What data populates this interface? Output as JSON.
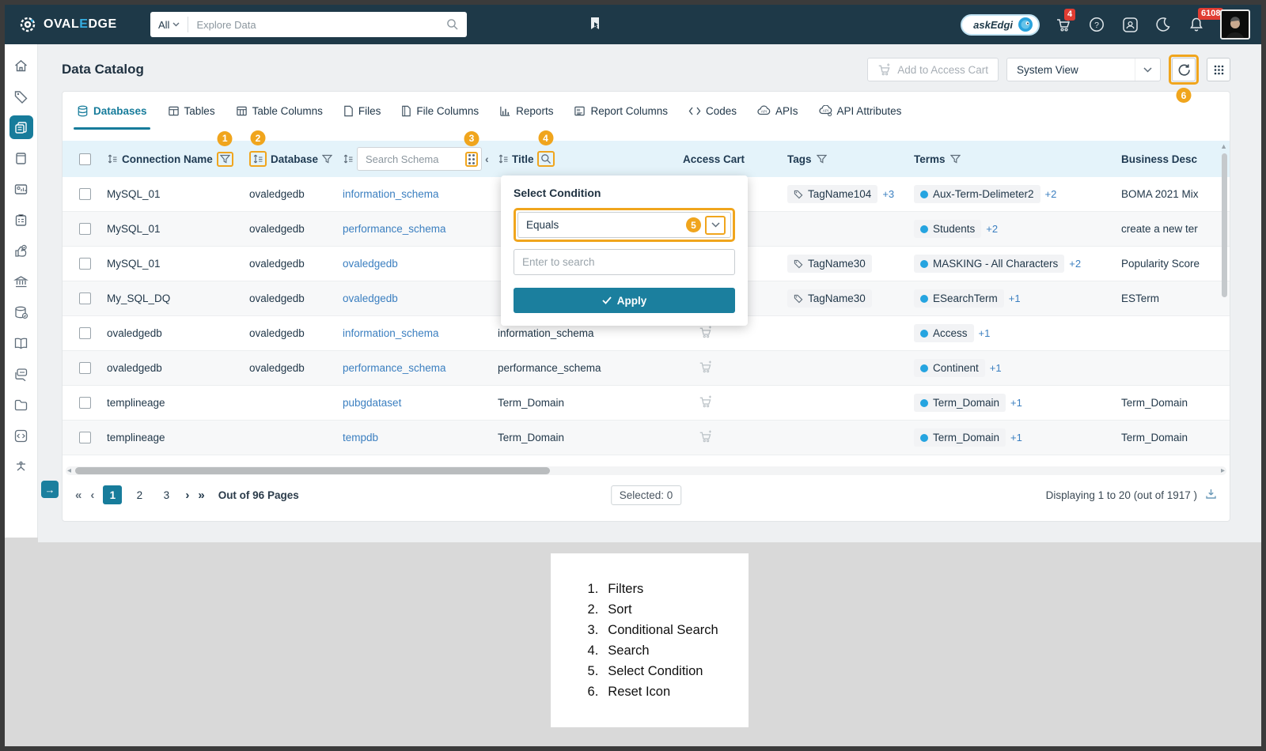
{
  "navbar": {
    "brand_prefix": "OVAL",
    "brand_accent": "E",
    "brand_suffix": "DGE",
    "search_scope": "All",
    "search_placeholder": "Explore Data",
    "ask_edgi_label": "askEdgi",
    "cart_badge": "4",
    "notifications_badge": "6108"
  },
  "page": {
    "title": "Data Catalog",
    "add_to_cart_label": "Add to Access Cart",
    "view_selector_value": "System View"
  },
  "tabs": [
    {
      "label": "Databases"
    },
    {
      "label": "Tables"
    },
    {
      "label": "Table Columns"
    },
    {
      "label": "Files"
    },
    {
      "label": "File Columns"
    },
    {
      "label": "Reports"
    },
    {
      "label": "Report Columns"
    },
    {
      "label": "Codes"
    },
    {
      "label": "APIs"
    },
    {
      "label": "API Attributes"
    }
  ],
  "annotations": {
    "filter_badge": "1",
    "sort_badge": "2",
    "conditional_badge": "3",
    "search_badge": "4",
    "condition_badge": "5",
    "reset_badge": "6"
  },
  "table": {
    "columns": {
      "connection": "Connection Name",
      "database": "Database",
      "schema_placeholder": "Search Schema",
      "title": "Title",
      "access_cart": "Access Cart",
      "tags": "Tags",
      "terms": "Terms",
      "description": "Business Desc"
    },
    "rows": [
      {
        "connection": "MySQL_01",
        "database": "ovaledgedb",
        "schema": "information_schema",
        "title": "",
        "tag": "TagName104",
        "tag_more": "+3",
        "term": "Aux-Term-Delimeter2",
        "term_more": "+2",
        "description": "BOMA 2021 Mix"
      },
      {
        "connection": "MySQL_01",
        "database": "ovaledgedb",
        "schema": "performance_schema",
        "title": "",
        "tag": "",
        "tag_more": "",
        "term": "Students",
        "term_more": "+2",
        "description": "create a new ter"
      },
      {
        "connection": "MySQL_01",
        "database": "ovaledgedb",
        "schema": "ovaledgedb",
        "title": "",
        "tag": "TagName30",
        "tag_more": "",
        "term": "MASKING - All Characters",
        "term_more": "+2",
        "description": "Popularity Score"
      },
      {
        "connection": "My_SQL_DQ",
        "database": "ovaledgedb",
        "schema": "ovaledgedb",
        "title": "",
        "tag": "TagName30",
        "tag_more": "",
        "term": "ESearchTerm",
        "term_more": "+1",
        "description": "ESTerm"
      },
      {
        "connection": "ovaledgedb",
        "database": "ovaledgedb",
        "schema": "information_schema",
        "title": "information_schema",
        "tag": "",
        "tag_more": "",
        "term": "Access",
        "term_more": "+1",
        "description": ""
      },
      {
        "connection": "ovaledgedb",
        "database": "ovaledgedb",
        "schema": "performance_schema",
        "title": "performance_schema",
        "tag": "",
        "tag_more": "",
        "term": "Continent",
        "term_more": "+1",
        "description": ""
      },
      {
        "connection": "templineage",
        "database": "",
        "schema": "pubgdataset",
        "title": "Term_Domain",
        "tag": "",
        "tag_more": "",
        "term": "Term_Domain",
        "term_more": "+1",
        "description": "Term_Domain"
      },
      {
        "connection": "templineage",
        "database": "",
        "schema": "tempdb",
        "title": "Term_Domain",
        "tag": "",
        "tag_more": "",
        "term": "Term_Domain",
        "term_more": "+1",
        "description": "Term_Domain"
      }
    ]
  },
  "popup": {
    "title": "Select Condition",
    "condition_value": "Equals",
    "search_placeholder": "Enter to search",
    "apply_label": "Apply"
  },
  "pagination": {
    "first": "«",
    "prev": "‹",
    "pages": [
      "1",
      "2",
      "3"
    ],
    "active_page": "1",
    "next": "›",
    "last": "»",
    "out_of": "Out of 96 Pages",
    "selected": "Selected: 0",
    "displaying": "Displaying 1 to 20  (out of 1917 )"
  },
  "legend": {
    "items": [
      {
        "num": "1.",
        "label": "Filters"
      },
      {
        "num": "2.",
        "label": "Sort"
      },
      {
        "num": "3.",
        "label": "Conditional Search"
      },
      {
        "num": "4.",
        "label": "Search"
      },
      {
        "num": "5.",
        "label": "Select Condition"
      },
      {
        "num": "6.",
        "label": "Reset Icon"
      }
    ]
  },
  "colors": {
    "accent_teal": "#177c9b",
    "highlight_orange": "#f0a51d",
    "badge_red": "#e03c32",
    "navbar_navy": "#1e3948"
  }
}
